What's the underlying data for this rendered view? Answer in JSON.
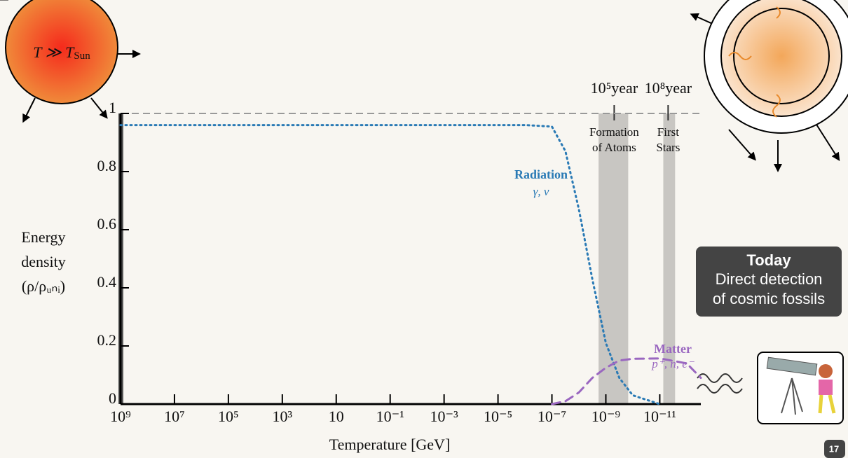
{
  "chart_data": {
    "type": "line",
    "x_label": "Temperature [GeV]",
    "y_label": [
      "Energy",
      "density",
      "(ρ/ρᵤₙᵢ)"
    ],
    "xscale": "log",
    "xlim": [
      1000000000.0,
      3e-13
    ],
    "ylim": [
      0,
      1
    ],
    "xticks": [
      {
        "value": 1000000000.0,
        "label": "10⁹"
      },
      {
        "value": 10000000.0,
        "label": "10⁷"
      },
      {
        "value": 100000.0,
        "label": "10⁵"
      },
      {
        "value": 1000.0,
        "label": "10³"
      },
      10,
      {
        "value": 0.1,
        "label": "10⁻¹"
      },
      {
        "value": 0.001,
        "label": "10⁻³"
      },
      {
        "value": 1e-05,
        "label": "10⁻⁵"
      },
      {
        "value": 1e-07,
        "label": "10⁻⁷"
      },
      {
        "value": 1e-09,
        "label": "10⁻⁹"
      },
      {
        "value": 1e-11,
        "label": "10⁻¹¹"
      }
    ],
    "yticks": [
      0,
      0.2,
      0.4,
      0.6,
      0.8,
      1
    ],
    "reference_line": {
      "value": 1,
      "color": "#999999"
    },
    "x": [
      1000000000.0,
      1e-06,
      1e-07,
      3.16e-08,
      1e-08,
      3.16e-09,
      1e-09,
      3.16e-10,
      1e-10,
      1e-11,
      1e-12,
      3e-13
    ],
    "series": [
      {
        "name": "Radiation",
        "sublabel": "γ, ν",
        "color": "#2a7ab5",
        "dash": "dotted",
        "values": [
          0.96,
          0.96,
          0.955,
          0.87,
          0.67,
          0.43,
          0.21,
          0.09,
          0.03,
          0,
          null,
          null
        ]
      },
      {
        "name": "Matter",
        "sublabel": "p⁺, n, e⁻",
        "color": "#9a67c0",
        "dash": "dashed",
        "values": [
          null,
          null,
          0,
          0.01,
          0.04,
          0.09,
          0.125,
          0.15,
          0.156,
          0.157,
          0.14,
          0.09
        ]
      }
    ],
    "bands": [
      {
        "label": [
          "Formation",
          "of Atoms"
        ],
        "time": "10⁵year",
        "xrange": [
          1.86e-09,
          1.48e-10
        ],
        "x": 4.9e-10
      },
      {
        "label": [
          "First",
          "Stars"
        ],
        "time": "10⁸year",
        "xrange": [
          7.4e-12,
          2.7e-12
        ],
        "x": 4.9e-12
      }
    ]
  },
  "sun_label": {
    "main": "T ≫ T",
    "sub": "Sun"
  },
  "today_box": {
    "title": "Today",
    "lines": [
      "Direct detection",
      "of cosmic fossils"
    ]
  },
  "page_number": "17"
}
